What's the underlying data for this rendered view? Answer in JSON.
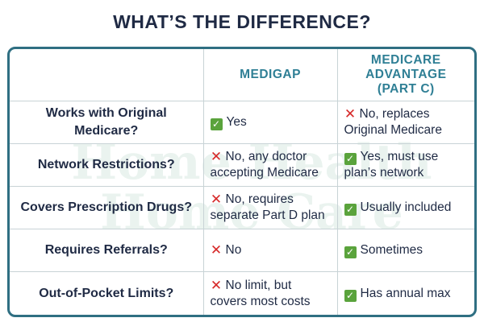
{
  "title": "WHAT’S THE DIFFERENCE?",
  "watermark": [
    "Home Health",
    "Home Care"
  ],
  "header": {
    "col1": "",
    "col2": "MEDIGAP",
    "col3_lines": [
      "MEDICARE",
      "ADVANTAGE",
      "(PART C)"
    ]
  },
  "rows": [
    {
      "label_lines": [
        "Works with Original",
        "Medicare?"
      ],
      "medigap": {
        "mark": "yes",
        "lines": [
          "Yes"
        ]
      },
      "advantage": {
        "mark": "no",
        "lines": [
          "No, replaces",
          "Original Medicare"
        ]
      }
    },
    {
      "label_lines": [
        "Network Restrictions?"
      ],
      "medigap": {
        "mark": "no",
        "lines": [
          "No, any doctor",
          "accepting Medicare"
        ]
      },
      "advantage": {
        "mark": "yes",
        "lines": [
          "Yes, must use",
          "plan’s network"
        ]
      }
    },
    {
      "label_lines": [
        "Covers Prescription Drugs?"
      ],
      "medigap": {
        "mark": "no",
        "lines": [
          "No, requires",
          "separate Part D plan"
        ]
      },
      "advantage": {
        "mark": "yes",
        "lines": [
          "Usually included"
        ]
      }
    },
    {
      "label_lines": [
        "Requires Referrals?"
      ],
      "medigap": {
        "mark": "no",
        "lines": [
          "No"
        ]
      },
      "advantage": {
        "mark": "yes",
        "lines": [
          "Sometimes"
        ]
      }
    },
    {
      "label_lines": [
        "Out-of-Pocket Limits?"
      ],
      "medigap": {
        "mark": "no",
        "lines": [
          "No limit, but",
          "covers most costs"
        ]
      },
      "advantage": {
        "mark": "yes",
        "lines": [
          "Has annual max"
        ]
      }
    }
  ],
  "colors": {
    "title": "#1f2a44",
    "accent": "#2f7f95",
    "border": "#2f6f82",
    "yes": "#5aa33c",
    "no": "#d62828"
  }
}
